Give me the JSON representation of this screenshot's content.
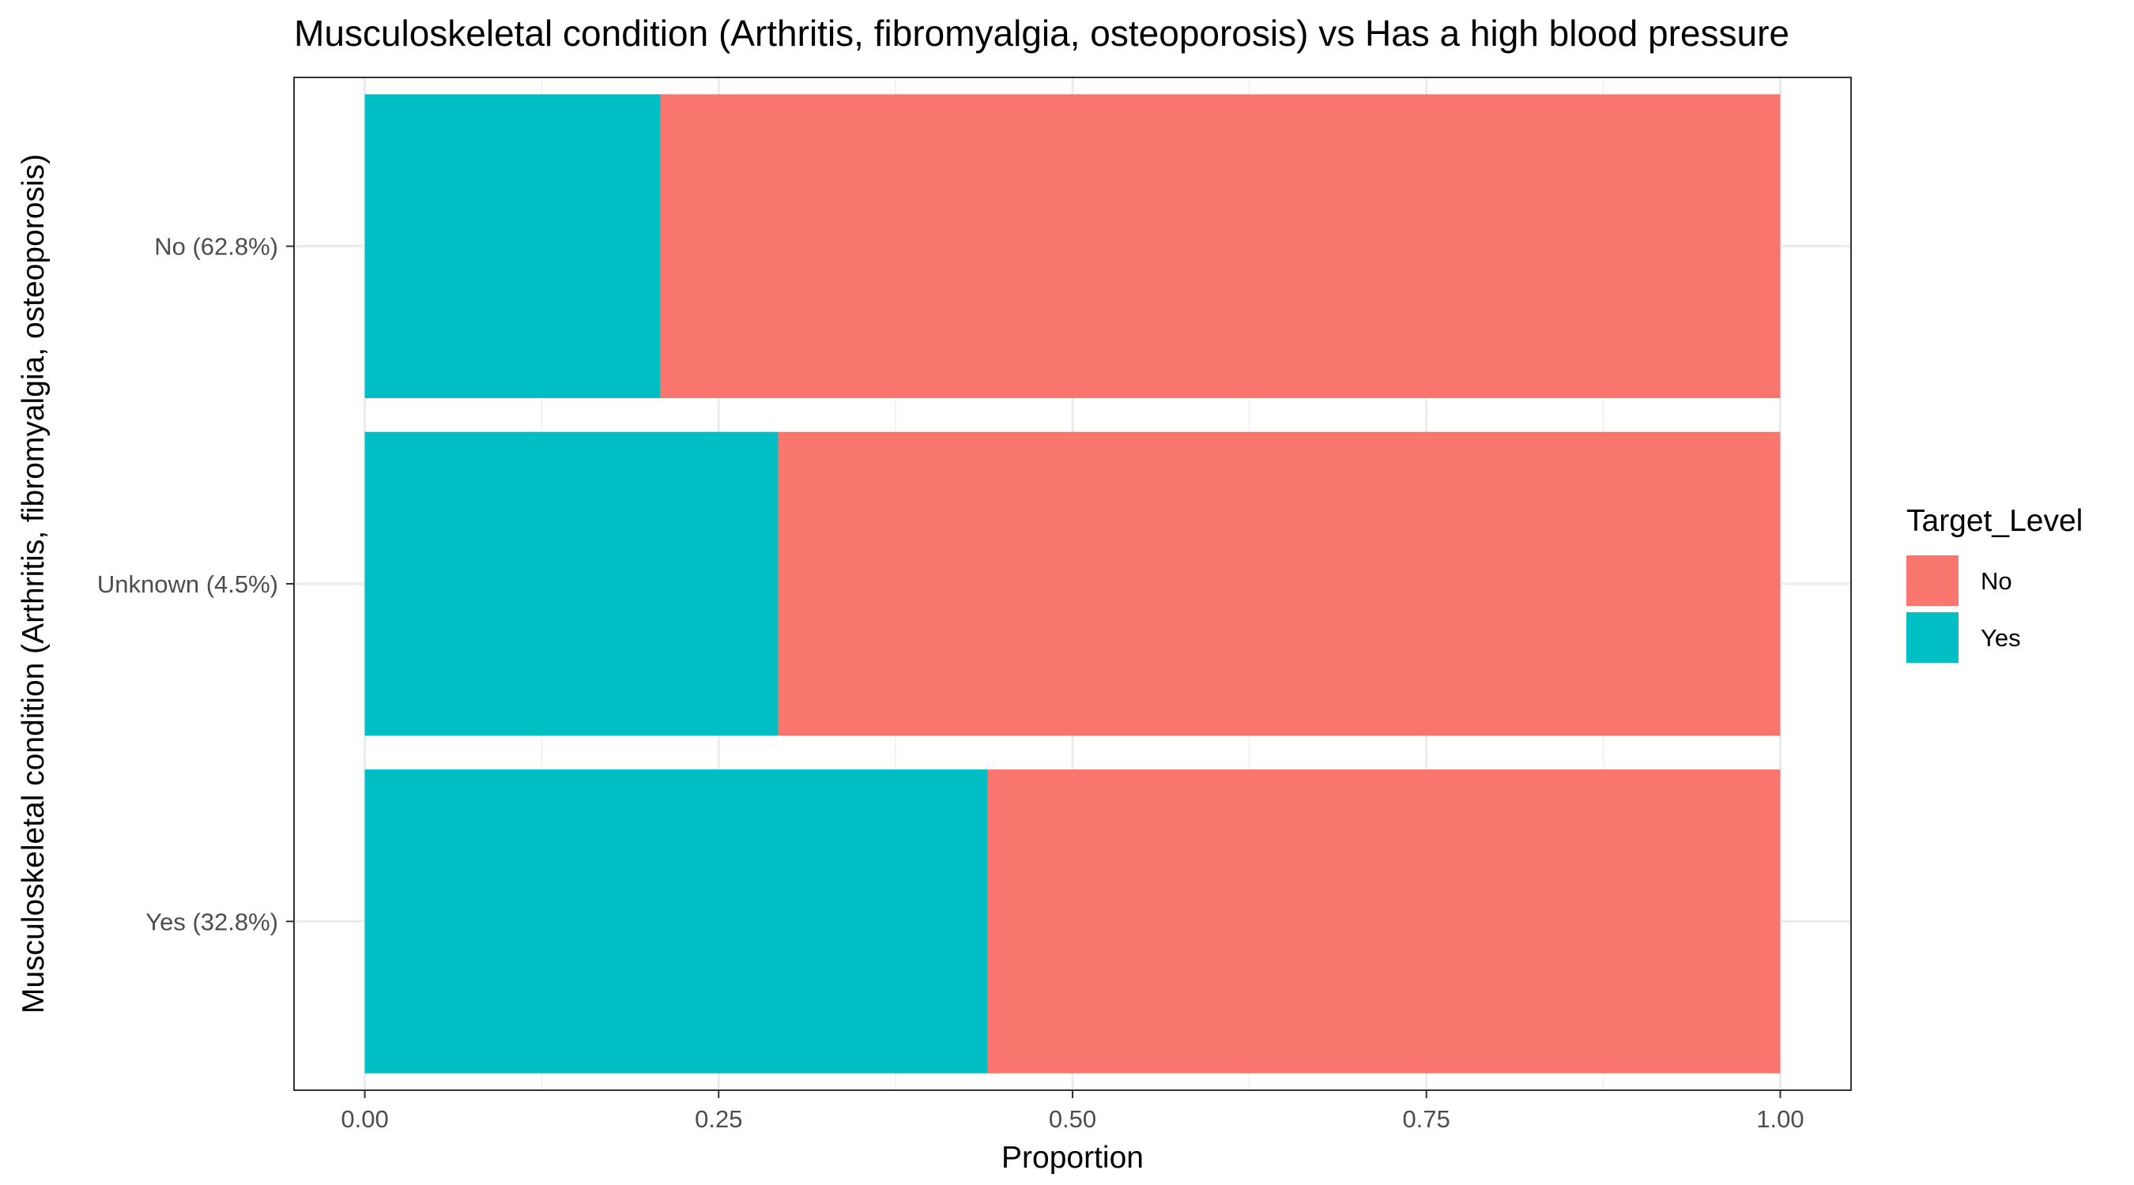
{
  "chart_data": {
    "type": "bar",
    "orientation": "horizontal",
    "stacked": true,
    "title": "Musculoskeletal condition (Arthritis, fibromyalgia, osteoporosis) vs Has a high blood pressure",
    "xlabel": "Proportion",
    "ylabel": "Musculoskeletal condition (Arthritis, fibromyalgia, osteoporosis)",
    "xlim": [
      -0.05,
      1.05
    ],
    "xticks": [
      0,
      0.25,
      0.5,
      0.75,
      1.0
    ],
    "xtick_labels": [
      "0.00",
      "0.25",
      "0.50",
      "0.75",
      "1.00"
    ],
    "categories": [
      "Yes (32.8%)",
      "Unknown (4.5%)",
      "No (62.8%)"
    ],
    "series": [
      {
        "name": "Yes",
        "color": "#00BFC4",
        "values": [
          0.44,
          0.292,
          0.209
        ]
      },
      {
        "name": "No",
        "color": "#F8766D",
        "values": [
          0.56,
          0.708,
          0.791
        ]
      }
    ],
    "legend": {
      "title": "Target_Level",
      "placement": "right",
      "entries": [
        {
          "label": "No",
          "color": "#F8766D"
        },
        {
          "label": "Yes",
          "color": "#00BFC4"
        }
      ]
    },
    "grid": true
  }
}
